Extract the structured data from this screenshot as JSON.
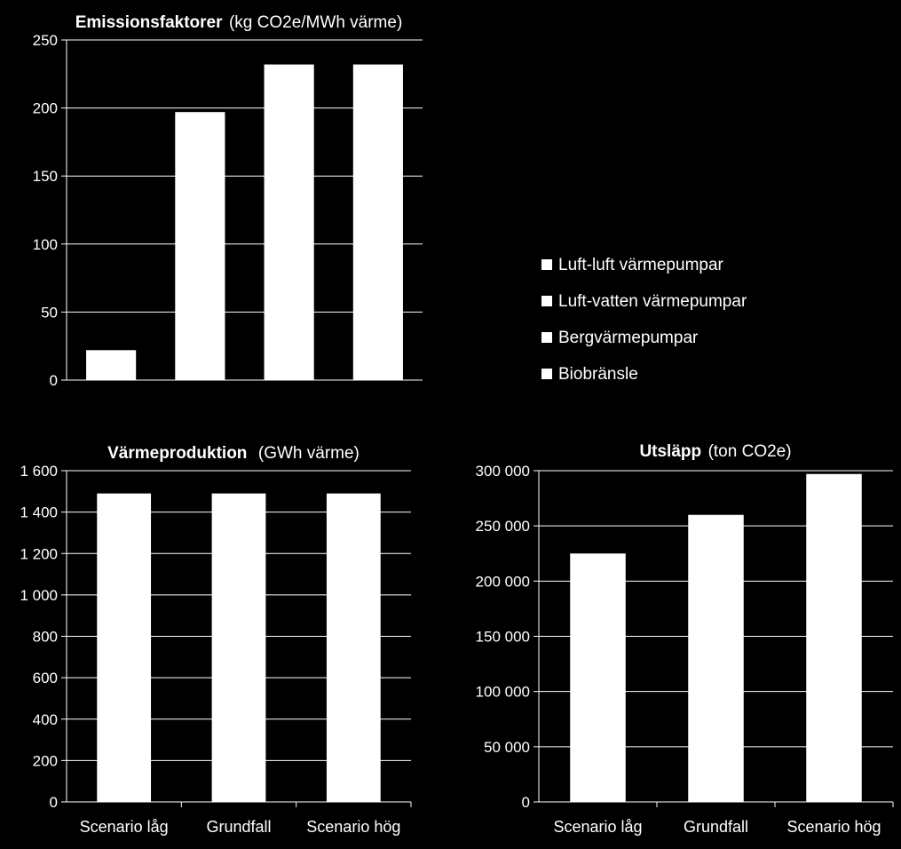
{
  "chart_data": [
    {
      "type": "bar",
      "title": "Emissionsfaktorer",
      "subtitle": "(kg CO2e/MWh värme)",
      "categories": [
        "Luft-luft värmepumpar",
        "Luft-vatten värmepumpar",
        "Bergvärmepumpar",
        "Biobränsle"
      ],
      "values": [
        22,
        197,
        232,
        232
      ],
      "ylim": [
        0,
        250
      ],
      "yticks": [
        0,
        50,
        100,
        150,
        200,
        250
      ],
      "ytick_labels": [
        "0",
        "50",
        "100",
        "150",
        "200",
        "250"
      ],
      "grid": true,
      "legend": "right"
    },
    {
      "type": "bar",
      "title": "Värmeproduktion",
      "subtitle": "(GWh värme)",
      "categories": [
        "Scenario låg",
        "Grundfall",
        "Scenario hög"
      ],
      "values": [
        1490,
        1490,
        1490
      ],
      "ylim": [
        0,
        1600
      ],
      "yticks": [
        0,
        200,
        400,
        600,
        800,
        1000,
        1200,
        1400,
        1600
      ],
      "ytick_labels": [
        "0",
        "200",
        "400",
        "600",
        "800",
        "1 000",
        "1 200",
        "1 400",
        "1 600"
      ],
      "grid": true
    },
    {
      "type": "bar",
      "title": "Utsläpp",
      "subtitle": "(ton CO2e)",
      "categories": [
        "Scenario låg",
        "Grundfall",
        "Scenario hög"
      ],
      "values": [
        225000,
        260000,
        297000
      ],
      "ylim": [
        0,
        300000
      ],
      "yticks": [
        0,
        50000,
        100000,
        150000,
        200000,
        250000,
        300000
      ],
      "ytick_labels": [
        "0",
        "50 000",
        "100 000",
        "150 000",
        "200 000",
        "250 000",
        "300 000"
      ],
      "grid": true
    }
  ],
  "legend": {
    "items": [
      "Luft-luft värmepumpar",
      "Luft-vatten värmepumpar",
      "Bergvärmepumpar",
      "Biobränsle"
    ],
    "color": "#ffffff"
  },
  "colors": {
    "background": "#000000",
    "bar": "#ffffff",
    "grid": "#ffffff",
    "text": "#ffffff"
  }
}
